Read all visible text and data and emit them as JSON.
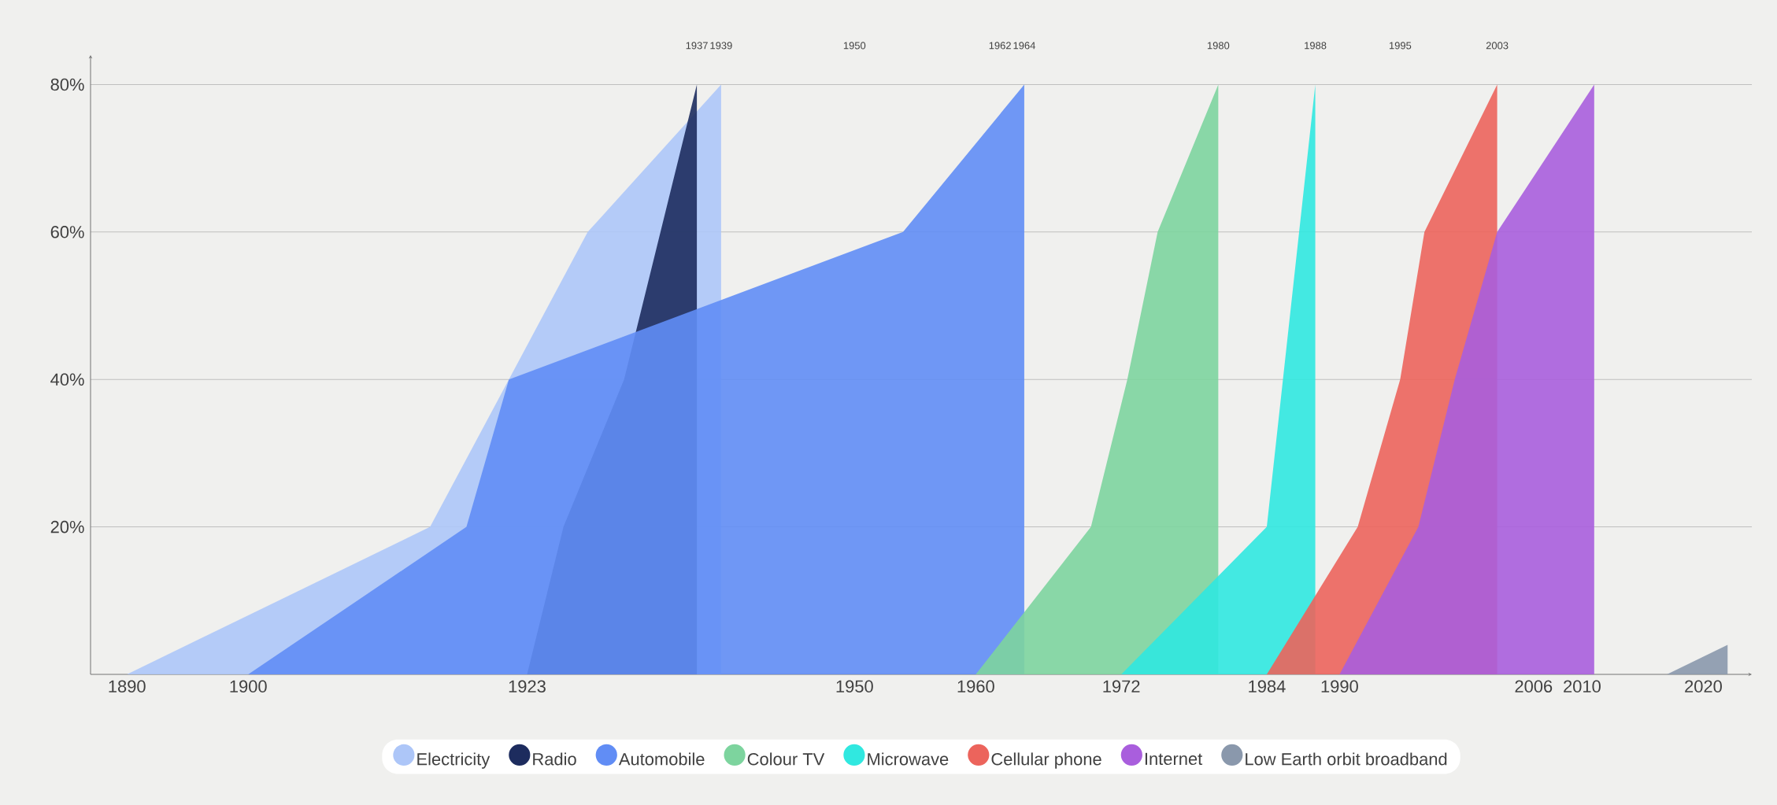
{
  "chart_data": {
    "type": "area",
    "xlim": [
      1887,
      2024
    ],
    "ylim": [
      0,
      84
    ],
    "xticks": [
      1890,
      1900,
      1923,
      1950,
      1960,
      1972,
      1984,
      1990,
      2006,
      2010,
      2020
    ],
    "x2lim": [
      1887,
      2024
    ],
    "x2ticks": [
      1937,
      1939,
      1950,
      1962,
      1964,
      1980,
      1988,
      1995,
      2003
    ],
    "yticks": [
      {
        "value": 20,
        "label": "20%"
      },
      {
        "value": 40,
        "label": "40%"
      },
      {
        "value": 60,
        "label": "60%"
      },
      {
        "value": 80,
        "label": "80%"
      }
    ],
    "grid": "y",
    "legend": "bottom",
    "marker": "none",
    "series": [
      {
        "name": "Electricity",
        "color": "#adc6f8",
        "x": [
          1890,
          1915,
          1928,
          1939,
          1939
        ],
        "values": [
          0,
          20,
          60,
          80,
          0
        ]
      },
      {
        "name": "Radio",
        "color": "#1d2c5e",
        "x": [
          1923,
          1926,
          1931,
          1937,
          1937
        ],
        "values": [
          0,
          20,
          40,
          80,
          0
        ]
      },
      {
        "name": "Automobile",
        "color": "#618df5",
        "x": [
          1900,
          1918,
          1921.5,
          1954,
          1964,
          1964
        ],
        "values": [
          0,
          20,
          40,
          60,
          80,
          0
        ]
      },
      {
        "name": "Colour TV",
        "color": "#7dd49e",
        "x": [
          1960,
          1969.5,
          1972.5,
          1975,
          1980,
          1980
        ],
        "values": [
          0,
          20,
          40,
          60,
          80,
          0
        ]
      },
      {
        "name": "Microwave",
        "color": "#30e8e0",
        "x": [
          1972,
          1984,
          1988,
          1988
        ],
        "values": [
          0,
          20,
          80,
          0
        ]
      },
      {
        "name": "Cellular phone",
        "color": "#ec645c",
        "x": [
          1984,
          1991.5,
          1995,
          1997,
          2003,
          2003
        ],
        "values": [
          0,
          20,
          40,
          60,
          80,
          0
        ]
      },
      {
        "name": "Internet",
        "color": "#a95edd",
        "x": [
          1990,
          1996.5,
          1999.5,
          2003,
          2011,
          2011
        ],
        "values": [
          0,
          20,
          40,
          60,
          80,
          0
        ]
      },
      {
        "name": "Low Earth orbit broadband",
        "color": "#8a98ac",
        "x": [
          2017,
          2022,
          2022
        ],
        "values": [
          0,
          4,
          0
        ]
      }
    ]
  }
}
